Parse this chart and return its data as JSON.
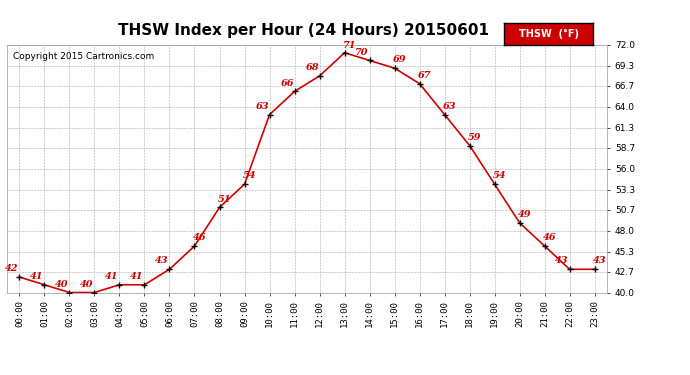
{
  "title": "THSW Index per Hour (24 Hours) 20150601",
  "copyright": "Copyright 2015 Cartronics.com",
  "legend_label": "THSW  (°F)",
  "hours": [
    0,
    1,
    2,
    3,
    4,
    5,
    6,
    7,
    8,
    9,
    10,
    11,
    12,
    13,
    14,
    15,
    16,
    17,
    18,
    19,
    20,
    21,
    22,
    23
  ],
  "values": [
    42,
    41,
    40,
    40,
    41,
    41,
    43,
    46,
    51,
    54,
    63,
    66,
    68,
    71,
    70,
    69,
    67,
    63,
    59,
    54,
    49,
    46,
    43,
    43
  ],
  "ylim": [
    40.0,
    72.0
  ],
  "yticks": [
    40.0,
    42.7,
    45.3,
    48.0,
    50.7,
    53.3,
    56.0,
    58.7,
    61.3,
    64.0,
    66.7,
    69.3,
    72.0
  ],
  "line_color": "#cc0000",
  "marker_color": "#000000",
  "label_color": "#cc0000",
  "background_color": "#ffffff",
  "grid_color": "#aaaaaa",
  "title_fontsize": 11,
  "tick_fontsize": 6.5,
  "label_fontsize": 7,
  "copyright_fontsize": 6.5,
  "legend_fontsize": 7
}
